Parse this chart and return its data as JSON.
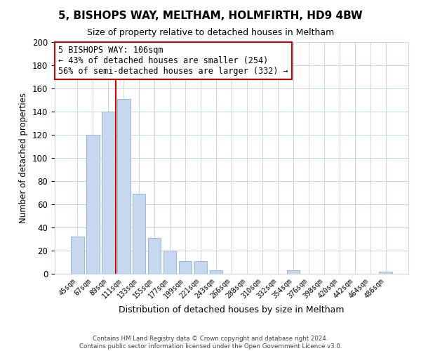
{
  "title": "5, BISHOPS WAY, MELTHAM, HOLMFIRTH, HD9 4BW",
  "subtitle": "Size of property relative to detached houses in Meltham",
  "xlabel": "Distribution of detached houses by size in Meltham",
  "ylabel": "Number of detached properties",
  "bar_labels": [
    "45sqm",
    "67sqm",
    "89sqm",
    "111sqm",
    "133sqm",
    "155sqm",
    "177sqm",
    "199sqm",
    "221sqm",
    "243sqm",
    "266sqm",
    "288sqm",
    "310sqm",
    "332sqm",
    "354sqm",
    "376sqm",
    "398sqm",
    "420sqm",
    "442sqm",
    "464sqm",
    "486sqm"
  ],
  "bar_values": [
    32,
    120,
    140,
    151,
    69,
    31,
    20,
    11,
    11,
    3,
    0,
    0,
    0,
    0,
    3,
    0,
    0,
    0,
    0,
    0,
    2
  ],
  "bar_color": "#c5d8f0",
  "bar_edge_color": "#a0b8d8",
  "vline_color": "#cc0000",
  "vline_pos": 2.5,
  "annotation_text_line1": "5 BISHOPS WAY: 106sqm",
  "annotation_text_line2": "← 43% of detached houses are smaller (254)",
  "annotation_text_line3": "56% of semi-detached houses are larger (332) →",
  "ylim": [
    0,
    200
  ],
  "yticks": [
    0,
    20,
    40,
    60,
    80,
    100,
    120,
    140,
    160,
    180,
    200
  ],
  "background_color": "#ffffff",
  "grid_color": "#c8d8e8",
  "footer_line1": "Contains HM Land Registry data © Crown copyright and database right 2024.",
  "footer_line2": "Contains public sector information licensed under the Open Government Licence v3.0."
}
